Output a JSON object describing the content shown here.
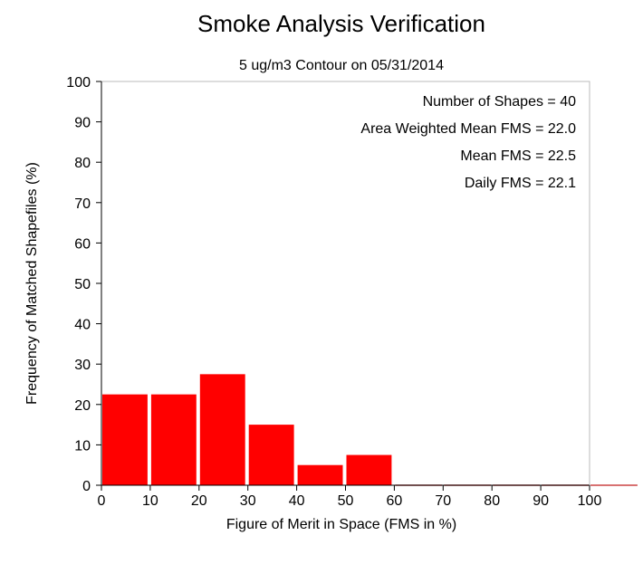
{
  "chart_data": {
    "type": "bar",
    "title": "Smoke Analysis Verification",
    "subtitle": "5 ug/m3 Contour on 05/31/2014",
    "xlabel": "Figure of Merit in Space (FMS in %)",
    "ylabel": "Frequency of Matched Shapefiles (%)",
    "xlim": [
      0,
      110
    ],
    "ylim": [
      0,
      100
    ],
    "x_ticks": [
      0,
      10,
      20,
      30,
      40,
      50,
      60,
      70,
      80,
      90,
      100
    ],
    "y_ticks": [
      0,
      10,
      20,
      30,
      40,
      50,
      60,
      70,
      80,
      90,
      100
    ],
    "bin_width": 10,
    "bins": [
      {
        "start": 0,
        "value": 22.5
      },
      {
        "start": 10,
        "value": 22.5
      },
      {
        "start": 20,
        "value": 27.5
      },
      {
        "start": 30,
        "value": 15.0
      },
      {
        "start": 40,
        "value": 5.0
      },
      {
        "start": 50,
        "value": 7.5
      },
      {
        "start": 60,
        "value": 0
      },
      {
        "start": 70,
        "value": 0
      },
      {
        "start": 80,
        "value": 0
      },
      {
        "start": 90,
        "value": 0
      },
      {
        "start": 100,
        "value": 0
      }
    ],
    "bar_color": "#ff0000",
    "grid": false,
    "annotations": [
      "Number of Shapes = 40",
      "Area Weighted Mean FMS = 22.0",
      "Mean FMS = 22.5",
      "Daily FMS = 22.1"
    ],
    "annotation_position": "top-right"
  }
}
